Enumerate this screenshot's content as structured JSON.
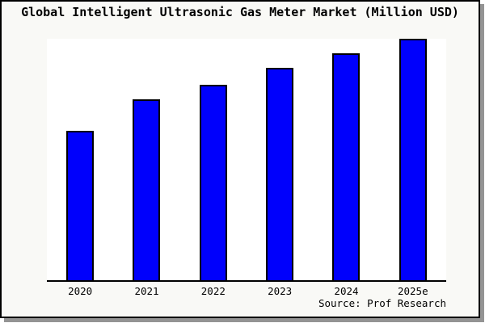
{
  "source": {
    "label": "Source: Prof Research"
  },
  "colors": {
    "bar_fill": "#0000fc",
    "bar_border": "#000000",
    "figure_background": "#f9f9f6",
    "plot_background": "#ffffff",
    "figure_border": "#000000",
    "drop_shadow": "#949494",
    "axis_line": "#000000",
    "text": "#000000"
  },
  "chart_data": {
    "type": "bar",
    "title": "Global Intelligent Ultrasonic Gas Meter Market (Million USD)",
    "categories": [
      "2020",
      "2021",
      "2022",
      "2023",
      "2024",
      "2025e"
    ],
    "values": [
      62,
      75,
      81,
      88,
      94,
      100
    ],
    "xlabel": "",
    "ylabel": "",
    "ylim": [
      0,
      100
    ],
    "legend": "none",
    "grid": false,
    "y_axis_ticks": "none shown; values are relative bar heights (tallest bar = 100)"
  }
}
